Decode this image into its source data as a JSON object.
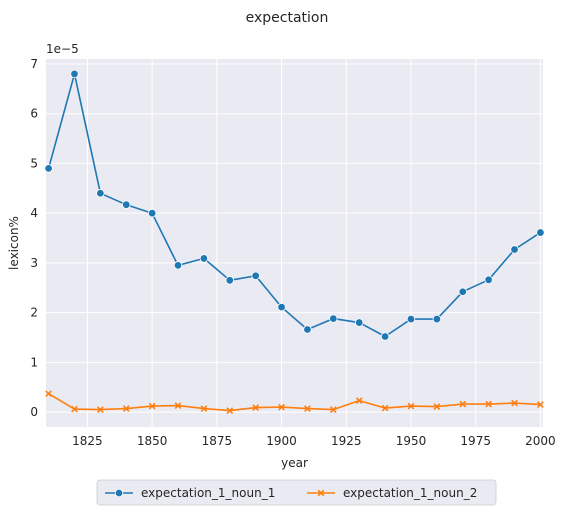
{
  "chart_data": {
    "type": "line",
    "title": "expectation",
    "xlabel": "year",
    "ylabel": "lexicon%",
    "y_multiplier_label": "1e−5",
    "xlim": [
      1809,
      2001
    ],
    "ylim": [
      -0.3,
      7.1
    ],
    "x_ticks": [
      1825,
      1850,
      1875,
      1900,
      1925,
      1950,
      1975,
      2000
    ],
    "y_ticks": [
      0,
      1,
      2,
      3,
      4,
      5,
      6,
      7
    ],
    "grid": true,
    "legend_position": "bottom-center",
    "x": [
      1810,
      1820,
      1830,
      1840,
      1850,
      1860,
      1870,
      1880,
      1890,
      1900,
      1910,
      1920,
      1930,
      1940,
      1950,
      1960,
      1970,
      1980,
      1990,
      2000
    ],
    "series": [
      {
        "name": "expectation_1_noun_1",
        "color": "#1f77b4",
        "marker": "circle",
        "values": [
          4.9,
          6.8,
          4.4,
          4.17,
          4.0,
          2.95,
          3.09,
          2.65,
          2.74,
          2.11,
          1.66,
          1.88,
          1.8,
          1.52,
          1.87,
          1.87,
          2.42,
          2.66,
          3.27,
          3.61
        ]
      },
      {
        "name": "expectation_1_noun_2",
        "color": "#ff7f0e",
        "marker": "x",
        "values": [
          0.37,
          0.06,
          0.05,
          0.07,
          0.12,
          0.13,
          0.07,
          0.03,
          0.09,
          0.1,
          0.07,
          0.05,
          0.23,
          0.08,
          0.12,
          0.11,
          0.16,
          0.16,
          0.18,
          0.15
        ]
      }
    ]
  }
}
